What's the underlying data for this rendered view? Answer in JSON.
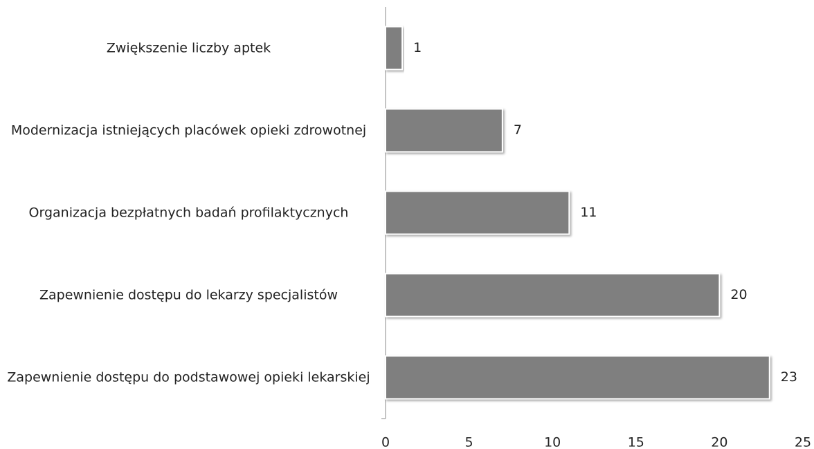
{
  "chart_data": {
    "type": "bar",
    "orientation": "horizontal",
    "categories": [
      "Zwiększenie liczby aptek",
      "Modernizacja istniejących placówek opieki zdrowotnej",
      "Organizacja bezpłatnych badań profilaktycznych",
      "Zapewnienie dostępu do lekarzy specjalistów",
      "Zapewnienie dostępu do podstawowej opieki lekarskiej"
    ],
    "values": [
      1,
      7,
      11,
      20,
      23
    ],
    "color": "#7f7f7f",
    "xlim": [
      0,
      25
    ],
    "xticks": [
      0,
      5,
      10,
      15,
      20,
      25
    ],
    "grid": false
  }
}
